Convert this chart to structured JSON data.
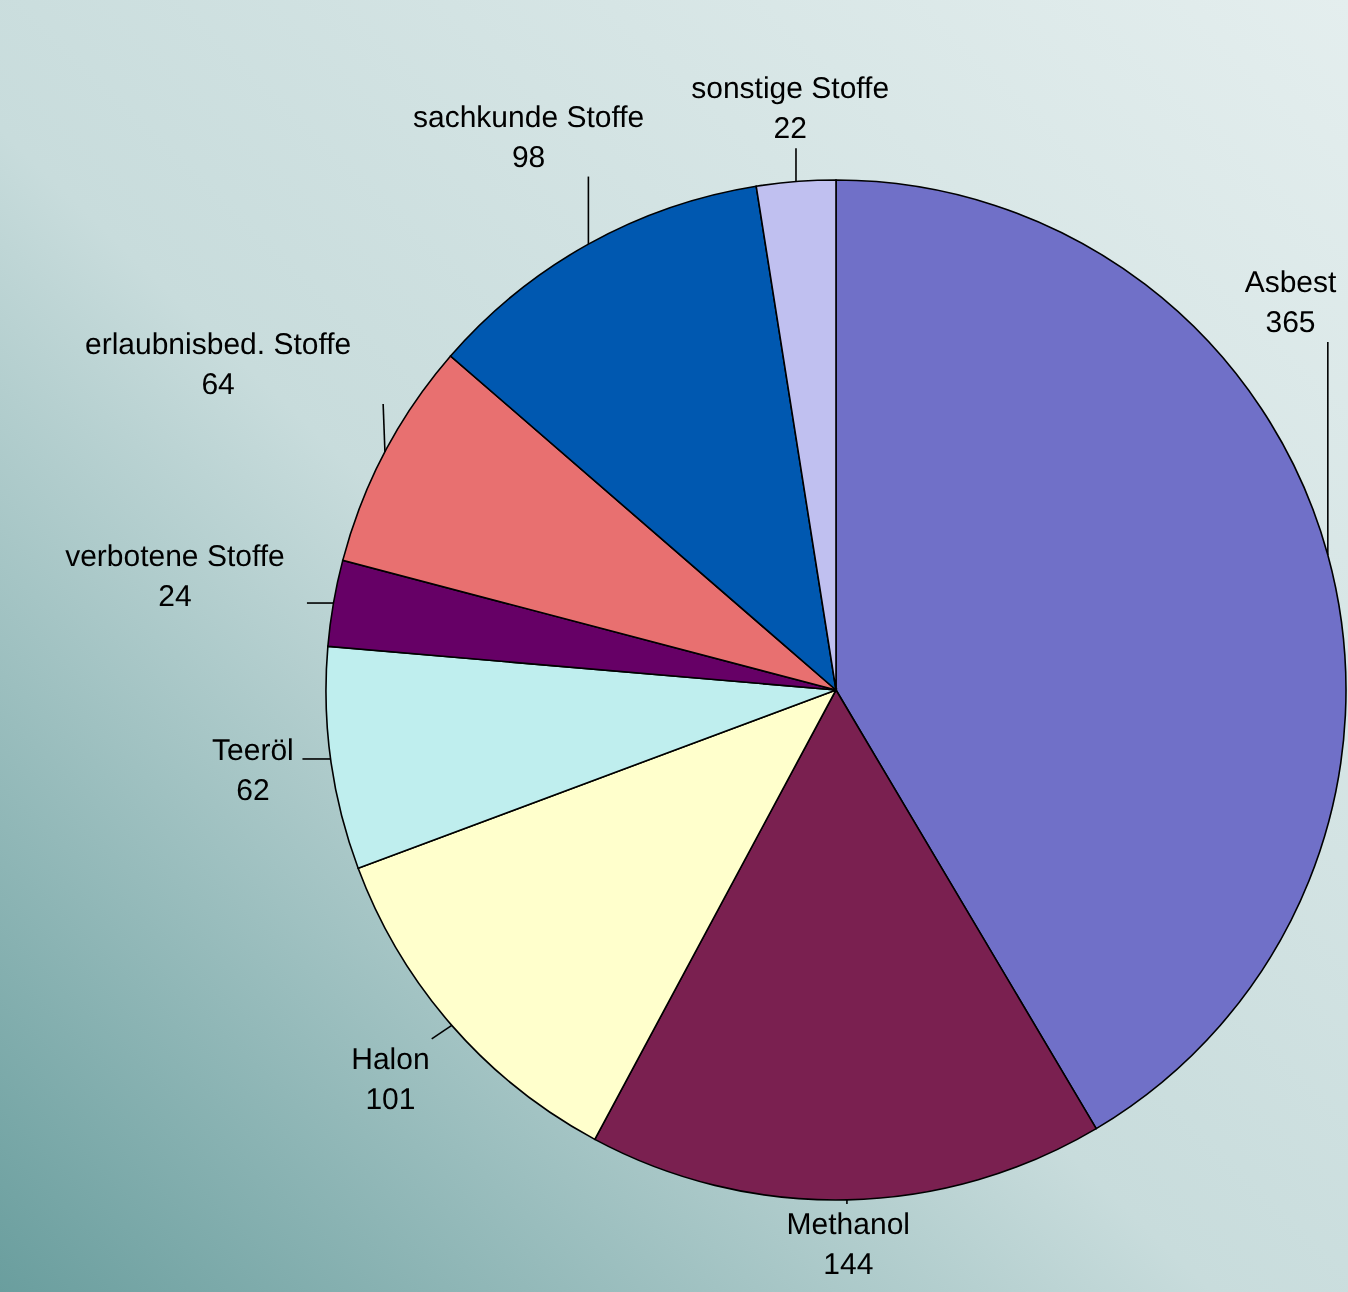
{
  "chart_data": {
    "type": "pie",
    "categories": [
      "Asbest",
      "Methanol",
      "Halon",
      "Teeröl",
      "verbotene Stoffe",
      "erlaubnisbed. Stoffe",
      "sachkunde Stoffe",
      "sonstige Stoffe"
    ],
    "values": [
      365,
      144,
      101,
      62,
      24,
      64,
      98,
      22
    ],
    "colors": [
      "#7070c8",
      "#7a2050",
      "#ffffcc",
      "#bfeeee",
      "#660066",
      "#e87070",
      "#0058b0",
      "#c0c0f0"
    ],
    "data_labels": true
  }
}
